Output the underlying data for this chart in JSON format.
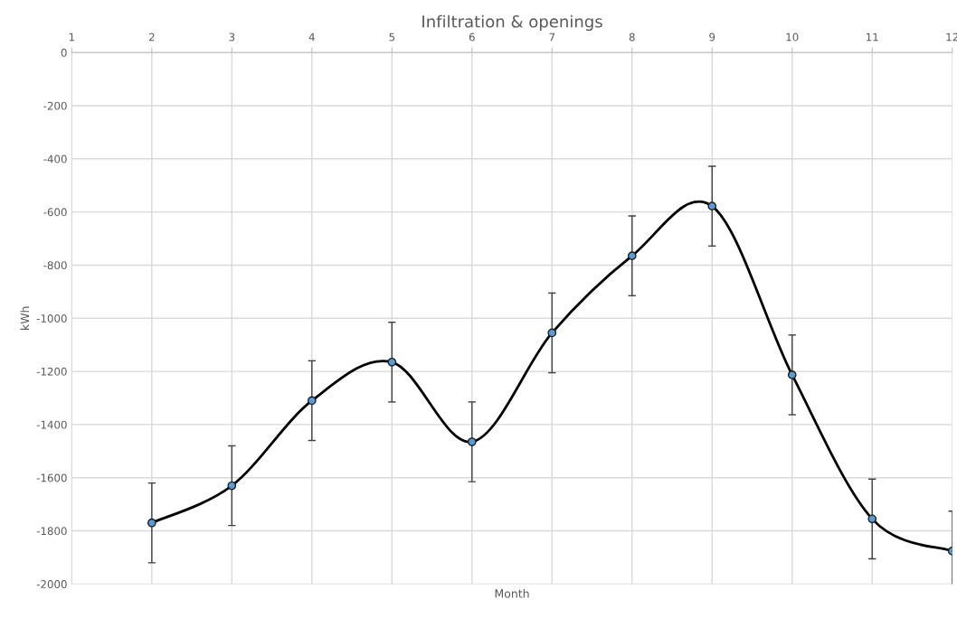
{
  "chart_data": {
    "type": "line",
    "title": "Infiltration & openings",
    "xlabel": "Month",
    "ylabel": "kWh",
    "x": [
      2,
      3,
      4,
      5,
      6,
      7,
      8,
      9,
      10,
      11,
      12
    ],
    "series": [
      {
        "color": "#000000",
        "values": [
          -1770,
          -1630,
          -1310,
          -1165,
          -1465,
          -1055,
          -765,
          -578,
          -1213,
          -1755,
          -1876
        ],
        "errors": [
          150,
          150,
          150,
          150,
          150,
          150,
          150,
          150,
          150,
          150,
          150
        ]
      }
    ],
    "xlim": [
      1,
      12
    ],
    "xticks": [
      1,
      2,
      3,
      4,
      5,
      6,
      7,
      8,
      9,
      10,
      11,
      12
    ],
    "ylim": [
      -2000,
      0
    ],
    "yticks": [
      0,
      -200,
      -400,
      -600,
      -800,
      -1000,
      -1200,
      -1400,
      -1600,
      -1800,
      -2000
    ],
    "grid": true,
    "marker": "circle",
    "line_style": "solid"
  }
}
